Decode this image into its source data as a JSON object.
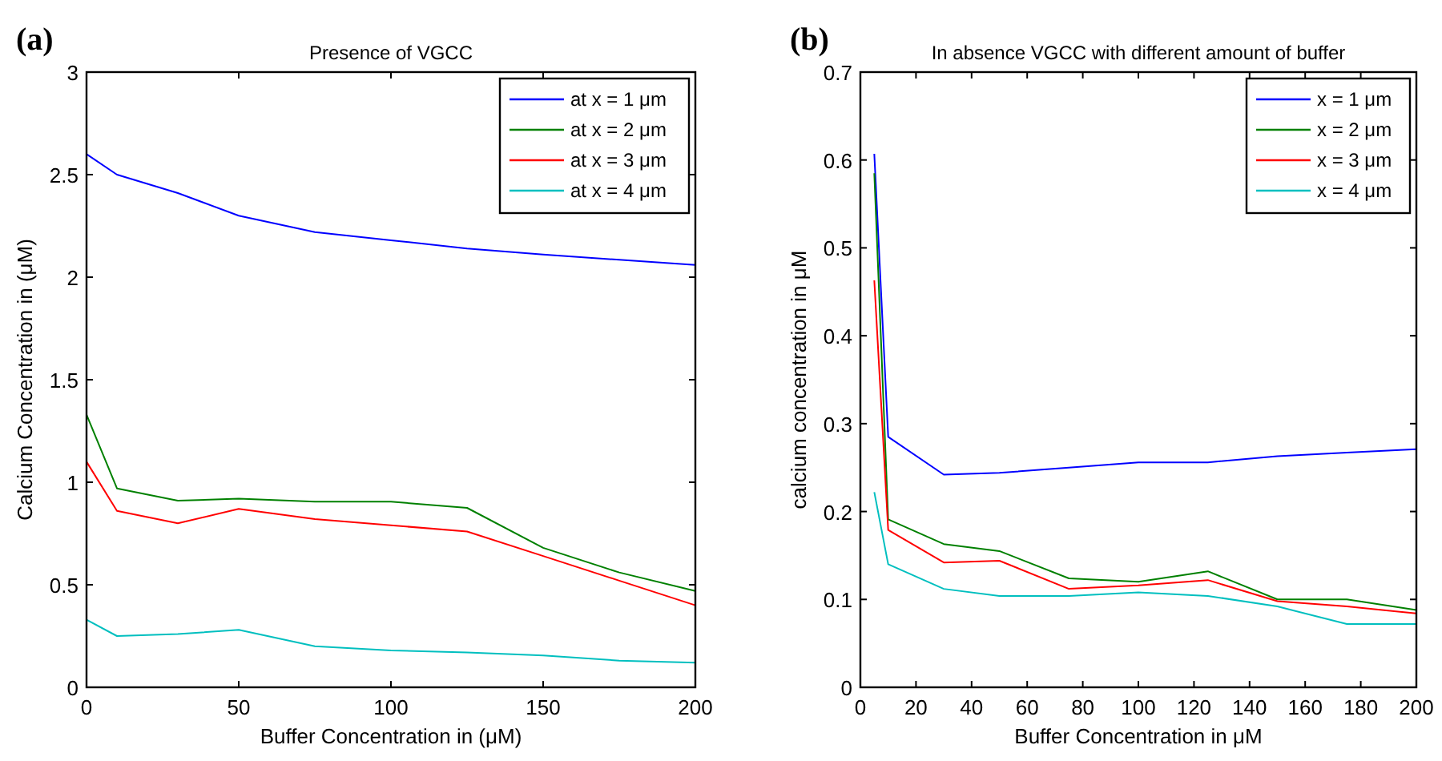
{
  "chart_data": [
    {
      "type": "line",
      "title": "Presence of VGCC",
      "xlabel": "Buffer Concentration in (μM)",
      "ylabel": "Calcium Concentration in (μM)",
      "annotations": [
        "(a)"
      ],
      "x": [
        0,
        10,
        30,
        50,
        75,
        100,
        125,
        150,
        175,
        200
      ],
      "xlim": [
        0,
        200
      ],
      "xticks": [
        0,
        50,
        100,
        150,
        200
      ],
      "ylim": [
        0,
        3
      ],
      "yticks": [
        0,
        0.5,
        1,
        1.5,
        2,
        2.5,
        3
      ],
      "legend": "top right",
      "grid": false,
      "marker": "none",
      "line_style": "solid",
      "series": [
        {
          "name": "at x = 1 μm",
          "color": "#0000ff",
          "values": [
            2.6,
            2.5,
            2.41,
            2.3,
            2.22,
            2.18,
            2.14,
            2.11,
            2.085,
            2.06
          ]
        },
        {
          "name": "at x = 2 μm",
          "color": "#008000",
          "values": [
            1.33,
            0.97,
            0.91,
            0.92,
            0.905,
            0.905,
            0.875,
            0.68,
            0.56,
            0.47
          ]
        },
        {
          "name": "at x = 3 μm",
          "color": "#ff0000",
          "values": [
            1.1,
            0.86,
            0.8,
            0.87,
            0.82,
            0.79,
            0.76,
            0.64,
            0.52,
            0.4
          ]
        },
        {
          "name": "at x = 4 μm",
          "color": "#00bfbf",
          "values": [
            0.33,
            0.25,
            0.26,
            0.28,
            0.2,
            0.18,
            0.17,
            0.155,
            0.13,
            0.12
          ]
        }
      ]
    },
    {
      "type": "line",
      "title": "In absence VGCC with different amount of buffer",
      "xlabel": "Buffer Concentration in μM",
      "ylabel": "calcium concentration in μM",
      "annotations": [
        "(b)"
      ],
      "x": [
        5,
        10,
        30,
        50,
        75,
        100,
        125,
        150,
        175,
        200
      ],
      "xlim": [
        0,
        200
      ],
      "xticks": [
        0,
        20,
        40,
        60,
        80,
        100,
        120,
        140,
        160,
        180,
        200
      ],
      "ylim": [
        0,
        0.7
      ],
      "yticks": [
        0,
        0.1,
        0.2,
        0.3,
        0.4,
        0.5,
        0.6,
        0.7
      ],
      "legend": "top right",
      "grid": false,
      "marker": "none",
      "line_style": "solid",
      "series": [
        {
          "name": "x = 1 μm",
          "color": "#0000ff",
          "values": [
            0.607,
            0.285,
            0.242,
            0.244,
            0.25,
            0.256,
            0.256,
            0.263,
            0.267,
            0.271
          ]
        },
        {
          "name": "x = 2 μm",
          "color": "#008000",
          "values": [
            0.585,
            0.191,
            0.163,
            0.155,
            0.124,
            0.12,
            0.132,
            0.1,
            0.1,
            0.088
          ]
        },
        {
          "name": "x = 3 μm",
          "color": "#ff0000",
          "values": [
            0.463,
            0.179,
            0.142,
            0.144,
            0.112,
            0.116,
            0.122,
            0.098,
            0.092,
            0.084
          ]
        },
        {
          "name": "x = 4 μm",
          "color": "#00bfbf",
          "values": [
            0.222,
            0.14,
            0.112,
            0.104,
            0.104,
            0.108,
            0.104,
            0.092,
            0.072,
            0.072
          ]
        }
      ]
    }
  ]
}
